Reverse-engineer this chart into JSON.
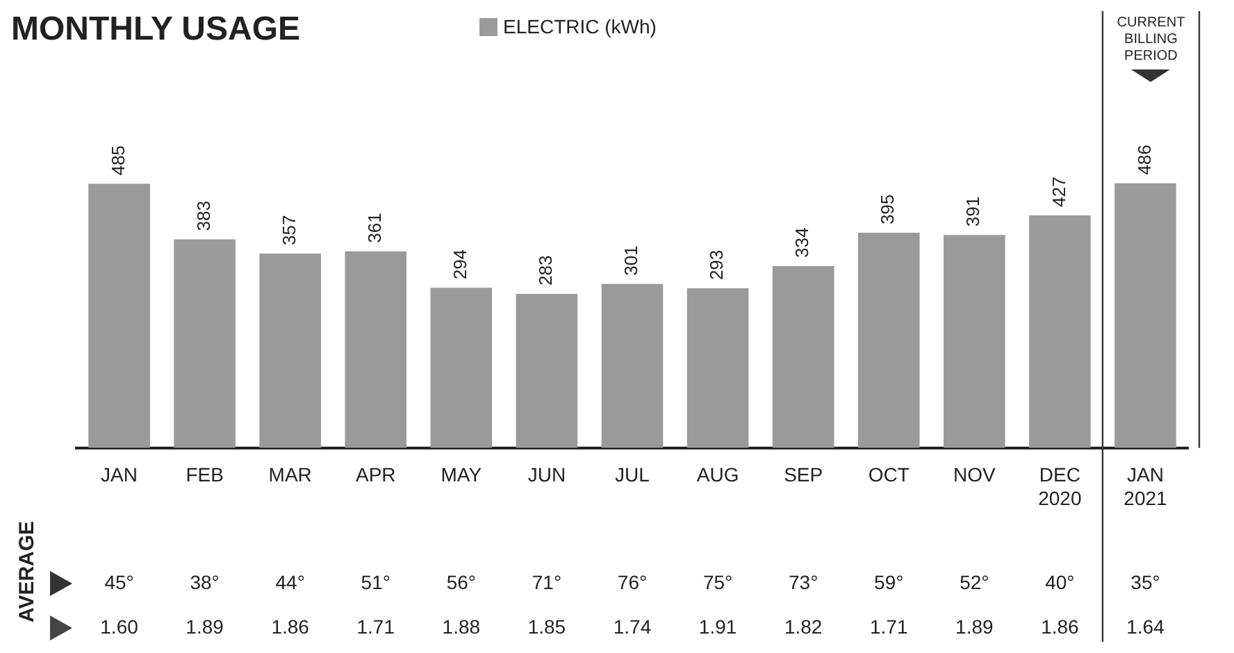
{
  "chart_data": {
    "type": "bar",
    "title": "MONTHLY USAGE",
    "categories": [
      "JAN",
      "FEB",
      "MAR",
      "APR",
      "MAY",
      "JUN",
      "JUL",
      "AUG",
      "SEP",
      "OCT",
      "NOV",
      "DEC\n2020",
      "JAN\n2021"
    ],
    "series": [
      {
        "name": "ELECTRIC (kWh)",
        "color": "#9a9a9a",
        "values": [
          485,
          383,
          357,
          361,
          294,
          283,
          301,
          293,
          334,
          395,
          391,
          427,
          486
        ]
      }
    ],
    "data_labels": true,
    "legend": "top",
    "grid": false,
    "annotations": [
      "AVERAGE",
      "CURRENT BILLING PERIOD",
      "45°",
      "38°",
      "44°",
      "51°",
      "56°",
      "71°",
      "76°",
      "75°",
      "73°",
      "59°",
      "52°",
      "40°",
      "35°",
      "1.60",
      "1.89",
      "1.86",
      "1.71",
      "1.88",
      "1.85",
      "1.74",
      "1.91",
      "1.82",
      "1.71",
      "1.89",
      "1.86",
      "1.64"
    ]
  }
}
